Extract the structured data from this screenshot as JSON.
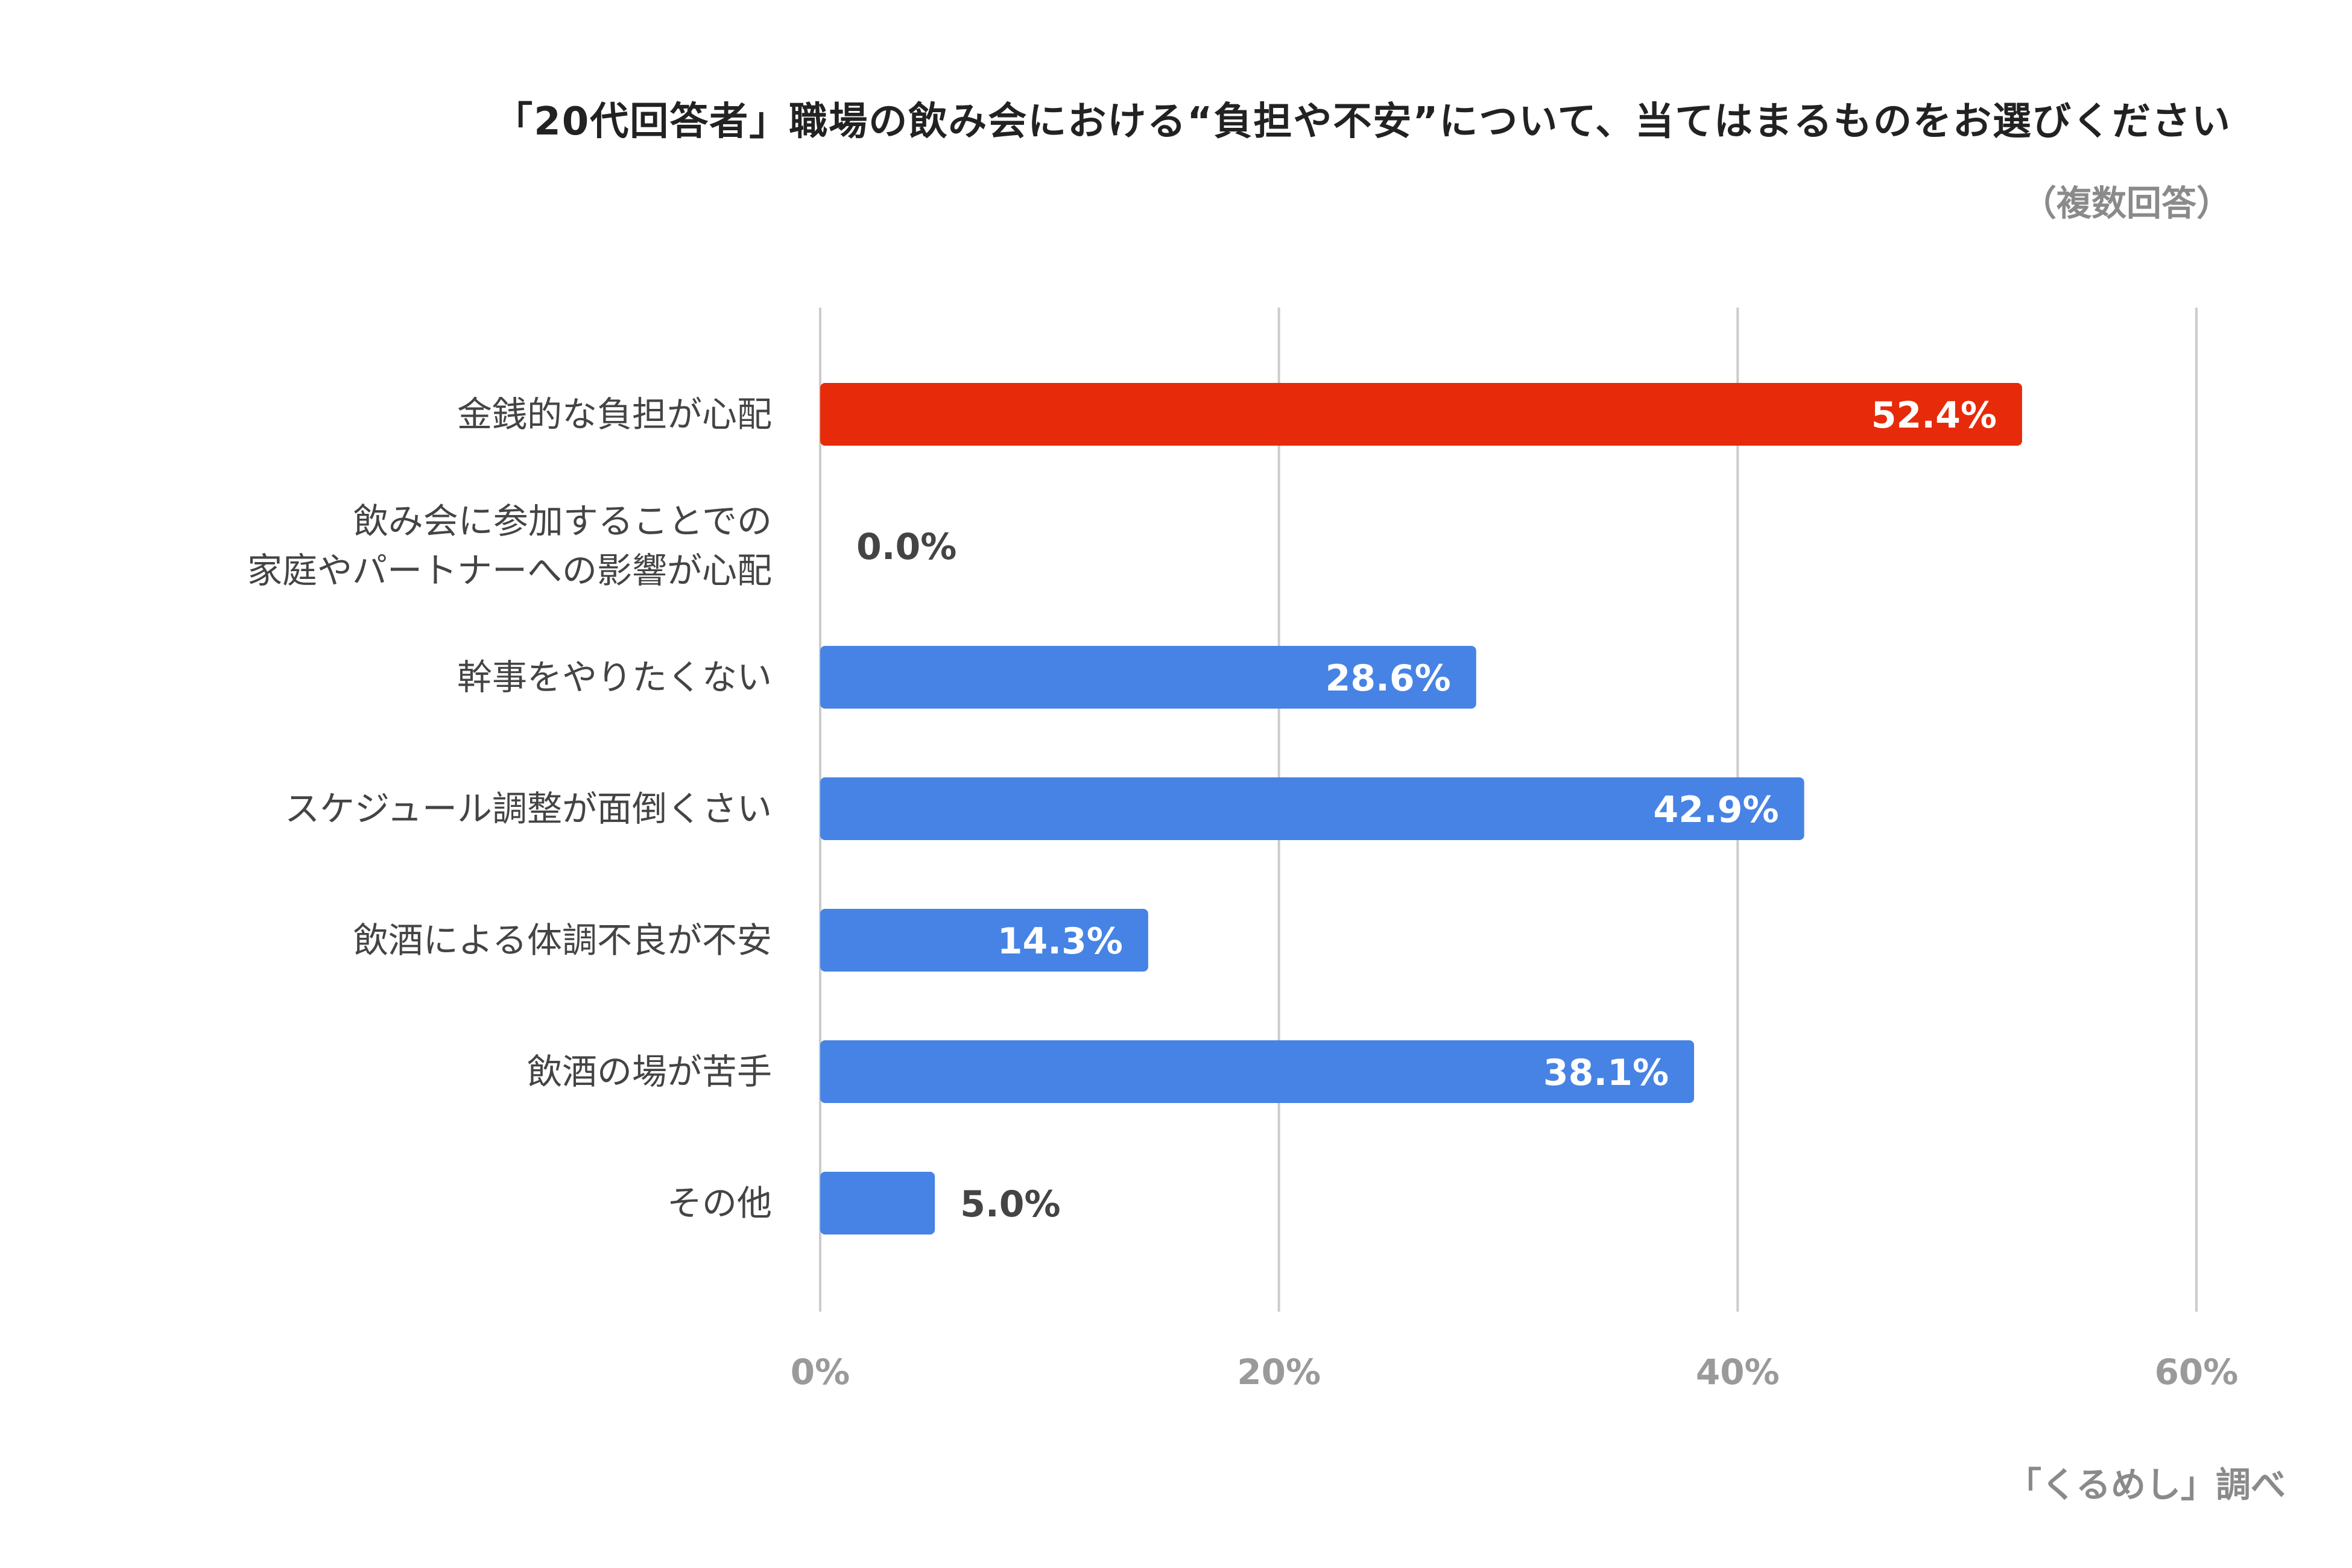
{
  "chart_data": {
    "type": "bar",
    "orientation": "horizontal",
    "title": "「20代回答者」職場の飲み会における“負担や不安”について、当てはまるものをお選びください",
    "subtitle": "（複数回答）",
    "source": "「くるめし」調べ",
    "categories": [
      "金銭的な負担が心配",
      "飲み会に参加することでの\n家庭やパートナーへの影響が心配",
      "幹事をやりたくない",
      "スケジュール調整が面倒くさい",
      "飲酒による体調不良が不安",
      "飲酒の場が苦手",
      "その他"
    ],
    "values": [
      52.4,
      0.0,
      28.6,
      42.9,
      14.3,
      38.1,
      5.0
    ],
    "value_labels": [
      "52.4%",
      "0.0%",
      "28.6%",
      "42.9%",
      "14.3%",
      "38.1%",
      "5.0%"
    ],
    "highlight_index": 0,
    "colors": {
      "default": "#4683e4",
      "highlight": "#e62a0a",
      "grid": "#cccccc"
    },
    "xlim": [
      0,
      60
    ],
    "xticks": [
      0,
      20,
      40,
      60
    ],
    "xtick_labels": [
      "0%",
      "20%",
      "40%",
      "60%"
    ],
    "grid": true,
    "legend": "none"
  }
}
